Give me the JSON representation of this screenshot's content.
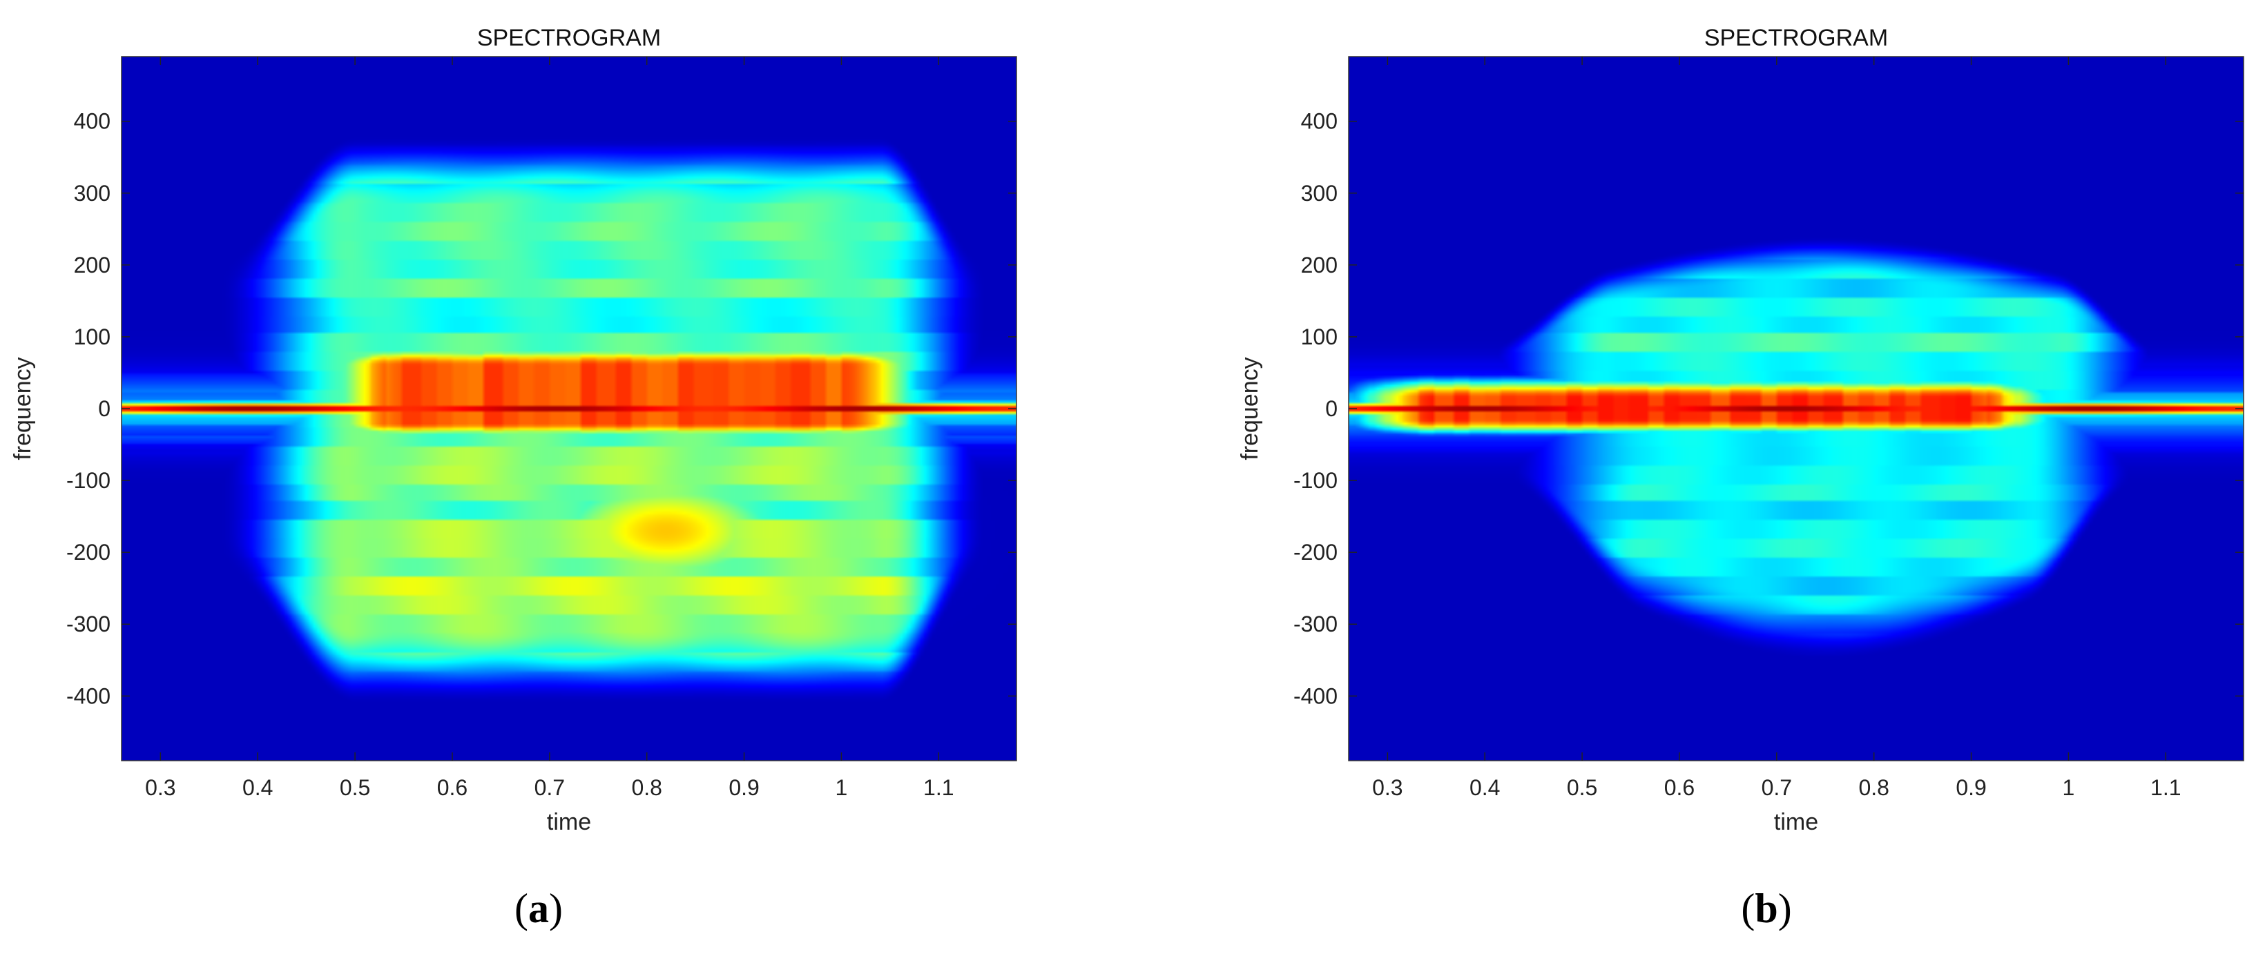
{
  "chart_data": [
    {
      "type": "heatmap",
      "panel": "a",
      "caption_open": "(",
      "caption_letter": "a",
      "caption_close": ")",
      "title": "SPECTROGRAM",
      "xlabel": "time",
      "ylabel": "frequency",
      "xlim": [
        0.26,
        1.18
      ],
      "ylim": [
        -490,
        490
      ],
      "xticks": [
        0.3,
        0.4,
        0.5,
        0.6,
        0.7,
        0.8,
        0.9,
        1,
        1.1
      ],
      "xtick_labels": [
        "0.3",
        "0.4",
        "0.5",
        "0.6",
        "0.7",
        "0.8",
        "0.9",
        "1",
        "1.1"
      ],
      "yticks": [
        400,
        300,
        200,
        100,
        0,
        -100,
        -200,
        -300,
        -400
      ],
      "ytick_labels": [
        "400",
        "300",
        "200",
        "100",
        "0",
        "-100",
        "-200",
        "-300",
        "-400"
      ],
      "colormap": "jet",
      "background_color": "#00008f",
      "features": {
        "carrier_line": {
          "frequency": 0,
          "intensity": 1.0
        },
        "upper_envelope": {
          "t_start": 0.42,
          "t_end": 1.1,
          "max_frequency": 380,
          "intensity": 0.5
        },
        "lower_envelope": {
          "t_start": 0.42,
          "t_end": 1.1,
          "min_frequency": -410,
          "intensity": 0.58
        },
        "hot_region": {
          "t_start": 0.5,
          "t_end": 1.05,
          "frequency_range": [
            -20,
            60
          ],
          "intensity": 0.82
        },
        "yellow_blob": {
          "t_center": 0.82,
          "frequency_center": -170,
          "intensity": 0.66
        }
      }
    },
    {
      "type": "heatmap",
      "panel": "b",
      "caption_open": "(",
      "caption_letter": "b",
      "caption_close": ")",
      "title": "SPECTROGRAM",
      "xlabel": "time",
      "ylabel": "frequency",
      "xlim": [
        0.26,
        1.18
      ],
      "ylim": [
        -490,
        490
      ],
      "xticks": [
        0.3,
        0.4,
        0.5,
        0.6,
        0.7,
        0.8,
        0.9,
        1,
        1.1
      ],
      "xtick_labels": [
        "0.3",
        "0.4",
        "0.5",
        "0.6",
        "0.7",
        "0.8",
        "0.9",
        "1",
        "1.1"
      ],
      "yticks": [
        400,
        300,
        200,
        100,
        0,
        -100,
        -200,
        -300,
        -400
      ],
      "ytick_labels": [
        "400",
        "300",
        "200",
        "100",
        "0",
        "-100",
        "-200",
        "-300",
        "-400"
      ],
      "colormap": "jet",
      "background_color": "#00008f",
      "features": {
        "carrier_line": {
          "frequency": 0,
          "intensity": 1.0
        },
        "upper_envelope": {
          "t_start": 0.45,
          "t_end": 1.05,
          "max_frequency": 240,
          "intensity": 0.42
        },
        "lower_envelope": {
          "t_start": 0.48,
          "t_end": 1.02,
          "min_frequency": -350,
          "intensity": 0.38
        },
        "hot_region": {
          "t_start": 0.3,
          "t_end": 0.95,
          "frequency_range": [
            -15,
            15
          ],
          "intensity": 0.85
        }
      }
    }
  ]
}
